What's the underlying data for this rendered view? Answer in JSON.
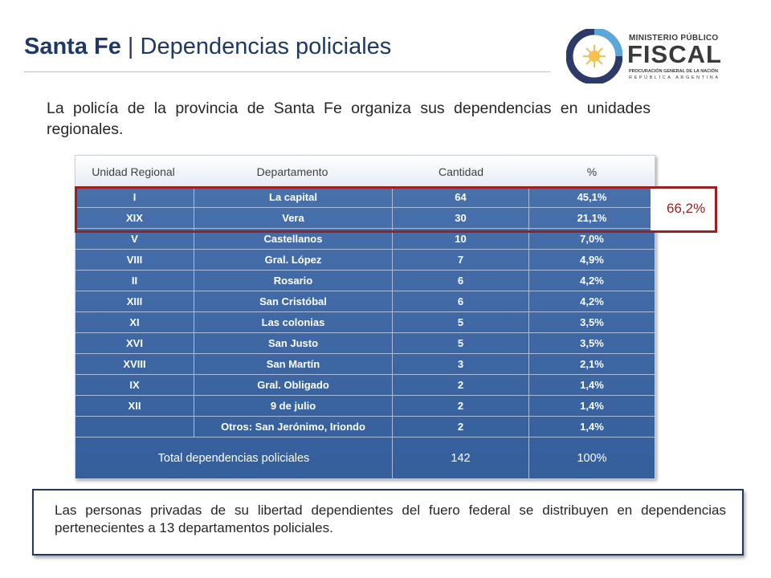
{
  "header": {
    "title_main": "Santa Fe",
    "title_sep": " | ",
    "title_rest": "Dependencias policiales"
  },
  "logo": {
    "line1": "MINISTERIO PÚBLICO",
    "line2": "FISCAL",
    "line3": "PROCURACIÓN GENERAL DE LA NACIÓN",
    "line4": "REPÚBLICA ARGENTINA",
    "colors": {
      "ring": "#2b3a67",
      "accent": "#5aa7d8",
      "sun": "#f2c14e",
      "text": "#3a3a3a"
    }
  },
  "intro_text": "La policía de la provincia de Santa Fe organiza sus dependencias en unidades regionales.",
  "table": {
    "headers": [
      "Unidad Regional",
      "Departamento",
      "Cantidad",
      "%"
    ],
    "rows": [
      [
        "I",
        "La capital",
        "64",
        "45,1%"
      ],
      [
        "XIX",
        "Vera",
        "30",
        "21,1%"
      ],
      [
        "V",
        "Castellanos",
        "10",
        "7,0%"
      ],
      [
        "VIII",
        "Gral. López",
        "7",
        "4,9%"
      ],
      [
        "II",
        "Rosario",
        "6",
        "4,2%"
      ],
      [
        "XIII",
        "San Cristóbal",
        "6",
        "4,2%"
      ],
      [
        "XI",
        "Las colonias",
        "5",
        "3,5%"
      ],
      [
        "XVI",
        "San Justo",
        "5",
        "3,5%"
      ],
      [
        "XVIII",
        "San Martín",
        "3",
        "2,1%"
      ],
      [
        "IX",
        "Gral. Obligado",
        "2",
        "1,4%"
      ],
      [
        "XII",
        "9 de julio",
        "2",
        "1,4%"
      ],
      [
        "",
        "Otros: San Jerónimo, Iriondo",
        "2",
        "1,4%"
      ]
    ],
    "total": {
      "label": "Total dependencias policiales",
      "count": "142",
      "percent": "100%"
    },
    "highlight_label": "66,2%",
    "colors": {
      "body": "#3d67a5",
      "highlight": "#9b2121",
      "header_text": "#404040"
    }
  },
  "note_text": "Las personas privadas de su libertad dependientes del fuero federal se distribuyen en dependencias pertenecientes a 13 departamentos policiales."
}
